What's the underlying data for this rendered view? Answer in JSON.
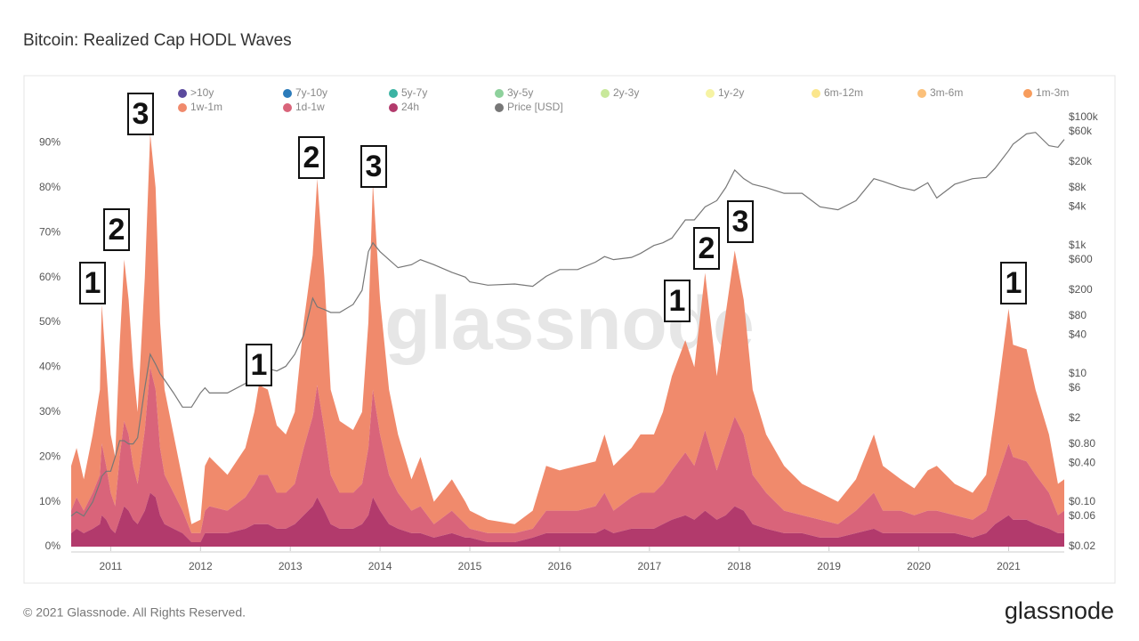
{
  "chart_data": {
    "type": "area",
    "title": "Bitcoin: Realized Cap HODL Waves",
    "watermark": "glassnode",
    "footer": "© 2021 Glassnode. All Rights Reserved.",
    "logo": "glassnode",
    "stacked": true,
    "y2_log": true,
    "x": [
      2010.56,
      2010.62,
      2010.7,
      2010.8,
      2010.88,
      2010.9,
      2010.95,
      2011.0,
      2011.05,
      2011.1,
      2011.15,
      2011.2,
      2011.25,
      2011.3,
      2011.38,
      2011.44,
      2011.5,
      2011.55,
      2011.6,
      2011.7,
      2011.8,
      2011.9,
      2012.0,
      2012.05,
      2012.1,
      2012.3,
      2012.5,
      2012.6,
      2012.65,
      2012.75,
      2012.85,
      2012.95,
      2013.05,
      2013.15,
      2013.25,
      2013.3,
      2013.38,
      2013.45,
      2013.55,
      2013.7,
      2013.8,
      2013.87,
      2013.92,
      2014.0,
      2014.1,
      2014.2,
      2014.35,
      2014.45,
      2014.6,
      2014.8,
      2014.95,
      2015.0,
      2015.2,
      2015.5,
      2015.7,
      2015.85,
      2016.0,
      2016.2,
      2016.4,
      2016.5,
      2016.6,
      2016.8,
      2016.9,
      2017.05,
      2017.15,
      2017.25,
      2017.4,
      2017.5,
      2017.62,
      2017.75,
      2017.85,
      2017.95,
      2018.05,
      2018.15,
      2018.3,
      2018.5,
      2018.7,
      2018.9,
      2019.1,
      2019.3,
      2019.5,
      2019.6,
      2019.8,
      2019.95,
      2020.1,
      2020.2,
      2020.4,
      2020.6,
      2020.75,
      2020.85,
      2021.0,
      2021.05,
      2021.2,
      2021.3,
      2021.45,
      2021.55,
      2021.62
    ],
    "series": [
      {
        "name": "1w-1m",
        "color": "#f08a6c",
        "values": [
          10,
          11,
          7,
          13,
          19,
          31,
          22,
          13,
          11,
          25,
          36,
          30,
          22,
          16,
          34,
          52,
          45,
          28,
          19,
          13,
          7,
          2,
          3,
          10,
          11,
          8,
          11,
          16,
          20,
          19,
          15,
          13,
          16,
          28,
          36,
          46,
          34,
          19,
          16,
          14,
          16,
          28,
          46,
          30,
          19,
          13,
          7,
          11,
          5,
          7,
          5,
          4,
          3,
          2,
          4,
          10,
          9,
          10,
          10,
          13,
          10,
          11,
          13,
          13,
          16,
          21,
          25,
          22,
          35,
          21,
          29,
          37,
          30,
          19,
          13,
          10,
          7,
          6,
          5,
          7,
          13,
          10,
          7,
          6,
          9,
          10,
          7,
          6,
          8,
          16,
          30,
          25,
          25,
          19,
          13,
          7,
          7
        ]
      },
      {
        "name": "1d-1w",
        "color": "#d9647a",
        "values": [
          5,
          7,
          5,
          8,
          11,
          16,
          12,
          8,
          6,
          14,
          19,
          17,
          12,
          9,
          18,
          28,
          24,
          15,
          11,
          8,
          5,
          2,
          2,
          5,
          6,
          5,
          7,
          9,
          11,
          11,
          8,
          8,
          9,
          15,
          20,
          25,
          18,
          11,
          8,
          8,
          9,
          15,
          24,
          17,
          11,
          8,
          5,
          6,
          3,
          5,
          3,
          2,
          2,
          2,
          2,
          5,
          5,
          5,
          6,
          8,
          5,
          7,
          8,
          8,
          9,
          11,
          14,
          12,
          18,
          11,
          16,
          20,
          17,
          11,
          8,
          5,
          4,
          4,
          3,
          5,
          8,
          5,
          5,
          4,
          5,
          5,
          4,
          4,
          5,
          9,
          16,
          14,
          13,
          11,
          8,
          4,
          5
        ]
      },
      {
        "name": "24h",
        "color": "#b23a6c",
        "values": [
          3,
          4,
          3,
          4,
          5,
          7,
          6,
          4,
          3,
          6,
          9,
          8,
          6,
          5,
          8,
          12,
          11,
          7,
          5,
          4,
          3,
          1,
          1,
          3,
          3,
          3,
          4,
          5,
          5,
          5,
          4,
          4,
          5,
          7,
          9,
          11,
          8,
          5,
          4,
          4,
          5,
          7,
          11,
          8,
          5,
          4,
          3,
          3,
          2,
          3,
          2,
          2,
          1,
          1,
          2,
          3,
          3,
          3,
          3,
          4,
          3,
          4,
          4,
          4,
          5,
          6,
          7,
          6,
          8,
          6,
          7,
          9,
          8,
          5,
          4,
          3,
          3,
          2,
          2,
          3,
          4,
          3,
          3,
          3,
          3,
          3,
          3,
          2,
          3,
          5,
          7,
          6,
          6,
          5,
          4,
          3,
          3
        ]
      },
      {
        "name": "Price [USD]",
        "color": "#777777",
        "axis": "y2",
        "values": [
          0.06,
          0.07,
          0.06,
          0.1,
          0.2,
          0.25,
          0.3,
          0.3,
          0.5,
          0.9,
          0.9,
          0.8,
          0.8,
          1,
          6,
          20,
          14,
          10,
          8,
          5,
          3,
          3,
          5,
          6,
          5,
          5,
          7,
          10,
          11,
          12,
          11,
          13,
          20,
          40,
          150,
          110,
          100,
          90,
          90,
          120,
          200,
          800,
          1100,
          800,
          600,
          450,
          500,
          600,
          500,
          380,
          320,
          270,
          240,
          250,
          230,
          330,
          420,
          420,
          550,
          670,
          600,
          650,
          750,
          1000,
          1100,
          1300,
          2500,
          2500,
          4000,
          5000,
          8000,
          15000,
          11000,
          9000,
          8000,
          6500,
          6500,
          4000,
          3600,
          5000,
          11000,
          10000,
          8000,
          7200,
          9500,
          5500,
          9000,
          11000,
          11500,
          16000,
          30000,
          38000,
          55000,
          58000,
          36000,
          34000,
          45000
        ]
      }
    ],
    "other_cohorts": [
      {
        "name": ">10y",
        "color": "#5b4a9e"
      },
      {
        "name": "7y-10y",
        "color": "#2b7bba"
      },
      {
        "name": "5y-7y",
        "color": "#3bb3a3"
      },
      {
        "name": "3y-5y",
        "color": "#8ed19c"
      },
      {
        "name": "2y-3y",
        "color": "#c8e89a"
      },
      {
        "name": "1y-2y",
        "color": "#f6f3a3"
      },
      {
        "name": "6m-12m",
        "color": "#fbe68c"
      },
      {
        "name": "3m-6m",
        "color": "#fbc07a"
      },
      {
        "name": "1m-3m",
        "color": "#f79c5c"
      }
    ],
    "annotations": [
      "1",
      "2",
      "3",
      "1",
      "2",
      "3",
      "1",
      "2",
      "3",
      "1"
    ],
    "xlim": [
      2010.56,
      2021.62
    ],
    "xticks": [
      2011,
      2012,
      2013,
      2014,
      2015,
      2016,
      2017,
      2018,
      2019,
      2020,
      2021
    ],
    "ylim": [
      0,
      100
    ],
    "yticks": [
      {
        "value": 0,
        "label": "0%"
      },
      {
        "value": 10,
        "label": "10%"
      },
      {
        "value": 20,
        "label": "20%"
      },
      {
        "value": 30,
        "label": "30%"
      },
      {
        "value": 40,
        "label": "40%"
      },
      {
        "value": 50,
        "label": "50%"
      },
      {
        "value": 60,
        "label": "60%"
      },
      {
        "value": 70,
        "label": "70%"
      },
      {
        "value": 80,
        "label": "80%"
      },
      {
        "value": 90,
        "label": "90%"
      }
    ],
    "y2lim": [
      0.02,
      200000
    ],
    "y2ticks": [
      {
        "value": 0.02,
        "label": "$0.02"
      },
      {
        "value": 0.06,
        "label": "$0.06"
      },
      {
        "value": 0.1,
        "label": "$0.10"
      },
      {
        "value": 0.4,
        "label": "$0.40"
      },
      {
        "value": 0.8,
        "label": "$0.80"
      },
      {
        "value": 2,
        "label": "$2"
      },
      {
        "value": 6,
        "label": "$6"
      },
      {
        "value": 10,
        "label": "$10"
      },
      {
        "value": 40,
        "label": "$40"
      },
      {
        "value": 80,
        "label": "$80"
      },
      {
        "value": 200,
        "label": "$200"
      },
      {
        "value": 600,
        "label": "$600"
      },
      {
        "value": 1000,
        "label": "$1k"
      },
      {
        "value": 4000,
        "label": "$4k"
      },
      {
        "value": 8000,
        "label": "$8k"
      },
      {
        "value": 20000,
        "label": "$20k"
      },
      {
        "value": 60000,
        "label": "$60k"
      },
      {
        "value": 100000,
        "label": "$100k"
      }
    ]
  }
}
